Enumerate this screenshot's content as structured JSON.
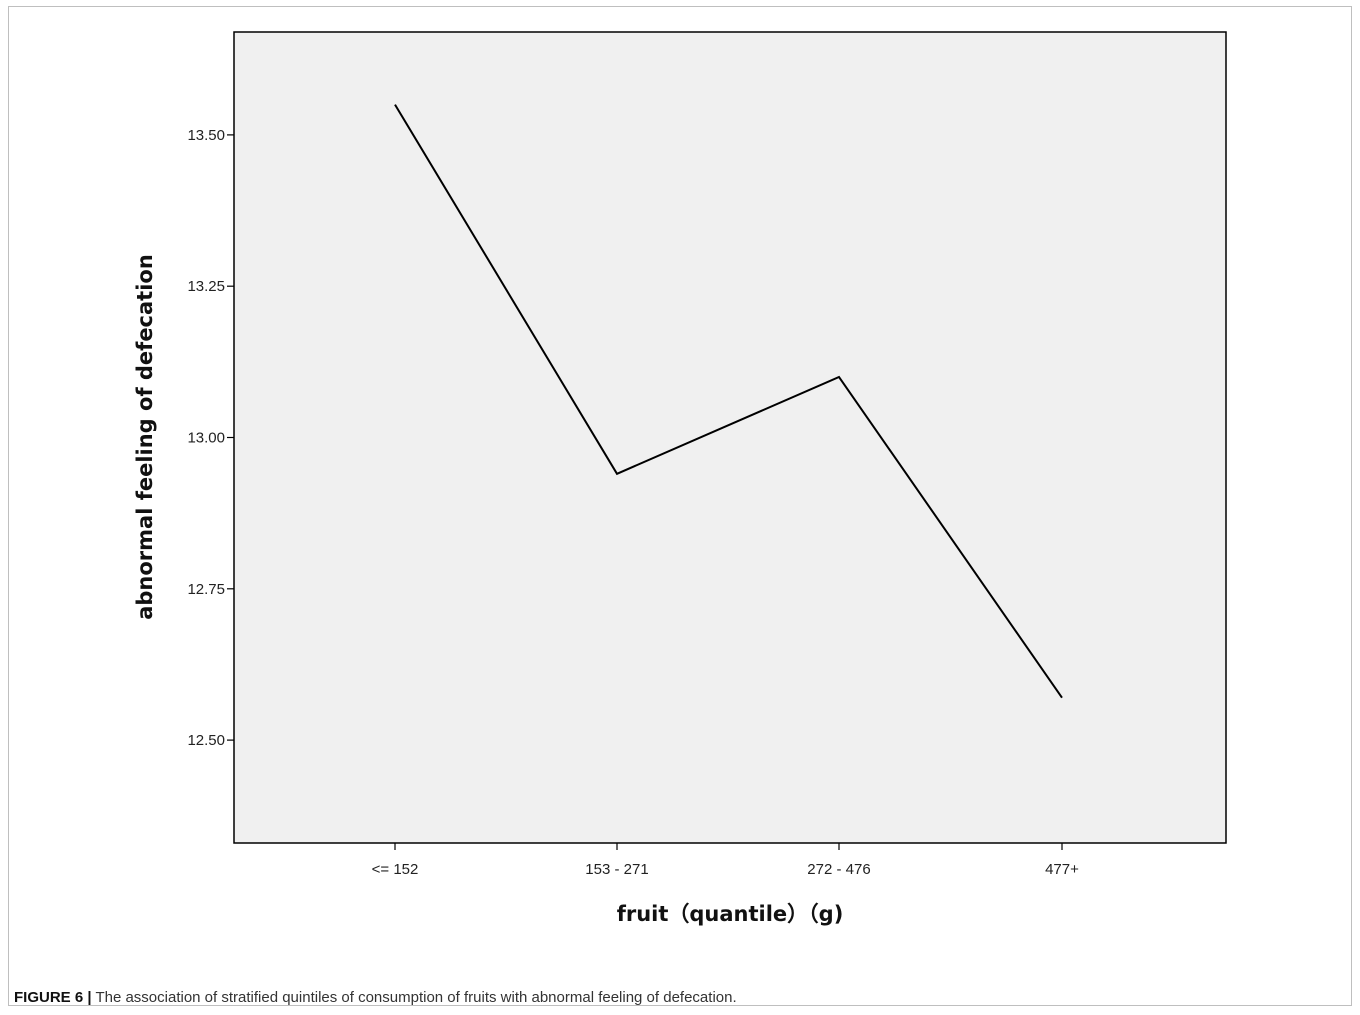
{
  "caption": {
    "figure_label": "FIGURE 6 |",
    "text": " The association of stratified quintiles of consumption of fruits with abnormal feeling of defecation."
  },
  "chart_data": {
    "type": "line",
    "title": "",
    "xlabel": "fruit（quantile）（g)",
    "ylabel": "abnormal feeling of defecation",
    "categories": [
      "<= 152",
      "153 - 271",
      "272 - 476",
      "477+"
    ],
    "series": [
      {
        "values": [
          13.55,
          12.94,
          13.1,
          12.57
        ]
      }
    ],
    "ylim": [
      12.33,
      13.67
    ],
    "yticks": [
      12.5,
      12.75,
      13.0,
      13.25,
      13.5
    ],
    "ytick_labels": [
      "12.50",
      "12.75",
      "13.00",
      "13.25",
      "13.50"
    ],
    "grid": false,
    "legend": "none",
    "colors": {
      "plot_background": "#f0f0f0",
      "line": "#000000",
      "axis": "#000000"
    }
  }
}
